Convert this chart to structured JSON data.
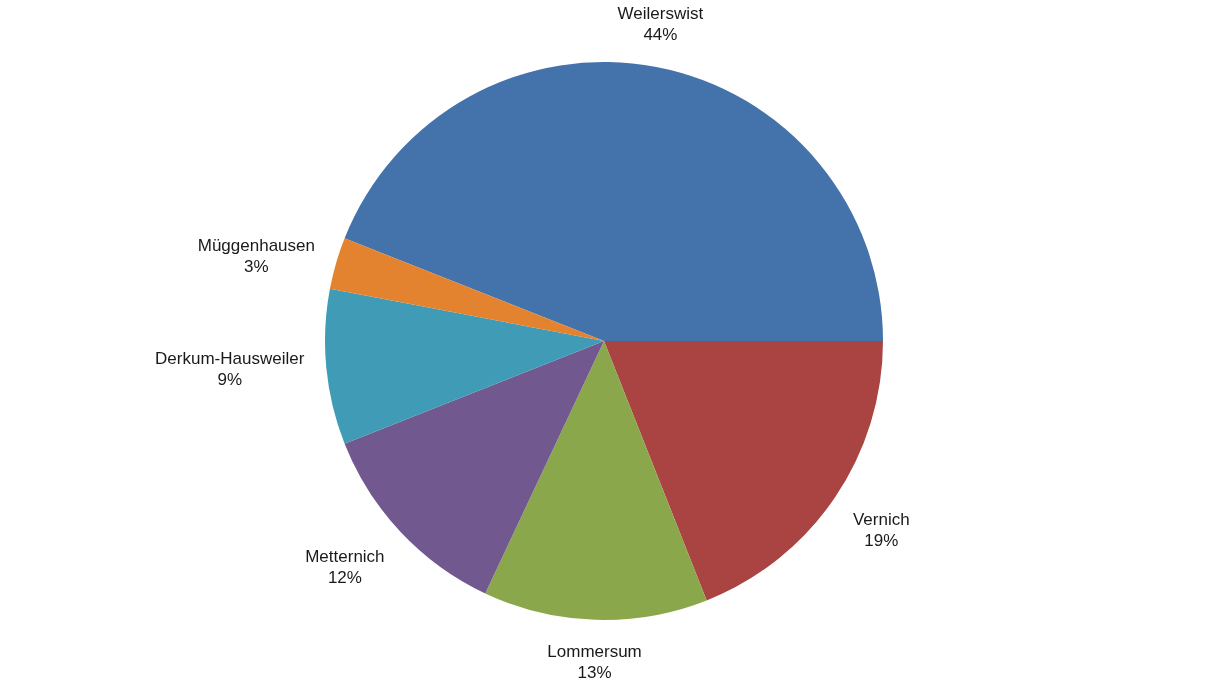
{
  "chart_data": {
    "type": "pie",
    "categories": [
      "Weilerswist",
      "Vernich",
      "Lommersum",
      "Metternich",
      "Derkum-Hausweiler",
      "Müggenhausen"
    ],
    "values": [
      44,
      19,
      13,
      12,
      9,
      3
    ],
    "colors": [
      "#4472aa",
      "#aa4442",
      "#8aa84b",
      "#71588f",
      "#3f9bb6",
      "#e3822f"
    ],
    "value_labels": [
      "44%",
      "19%",
      "13%",
      "12%",
      "9%",
      "3%"
    ],
    "legend": false
  }
}
